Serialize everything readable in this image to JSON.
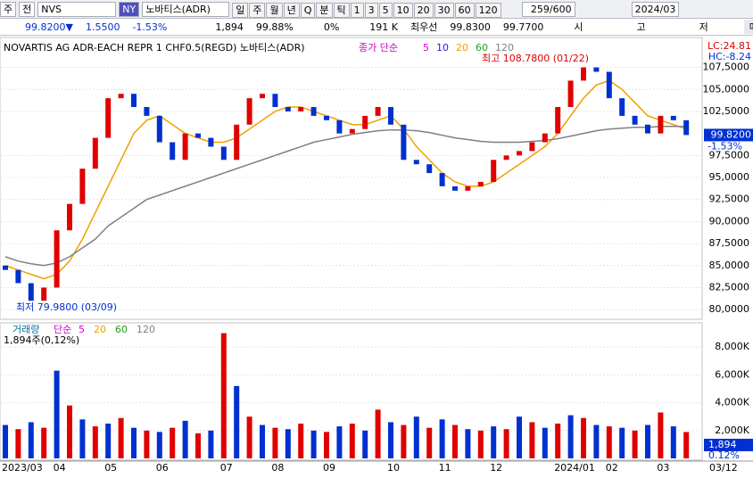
{
  "toolbar": {
    "market": "주",
    "mode": "전",
    "symbol": "NVS",
    "exchange": "NY",
    "name": "노바티스(ADR)",
    "periods": [
      "일",
      "주",
      "월",
      "년",
      "Q",
      "분",
      "틱",
      "1",
      "3",
      "5",
      "10",
      "20",
      "30",
      "60",
      "120"
    ],
    "count": "259/600",
    "date": "2024/03"
  },
  "info": {
    "price": "99.8200▼",
    "change": "1.5500",
    "rate": "-1.53%",
    "volume": "1,894",
    "ratio": "99.88%",
    "zero": "0%",
    "amount": "191 K",
    "best_label": "최우선",
    "ask": "99.8300",
    "bid": "99.7700",
    "open_label": "시",
    "high_label": "고",
    "low_label": "저",
    "buy": "매수"
  },
  "chart_data": [
    {
      "type": "candlestick",
      "title": "NOVARTIS AG ADR-EACH REPR 1 CHF0.5(REGD)  노바티스(ADR)",
      "legend_title": "종가 단순",
      "lc": "LC:24.81",
      "hc": "HC:-8.24",
      "high_note": "최고 108.7800 (01/22)",
      "low_note": "최저 79.9800 (03/09)",
      "last_label": "99.8200",
      "last_rate": "-1.53%",
      "last_value": 99.82,
      "categories": [
        "2023/03",
        null,
        null,
        null,
        "04",
        null,
        null,
        null,
        "05",
        null,
        null,
        null,
        "06",
        null,
        null,
        null,
        null,
        "07",
        null,
        null,
        null,
        "08",
        null,
        null,
        null,
        "09",
        null,
        null,
        null,
        null,
        "10",
        null,
        null,
        null,
        "11",
        null,
        null,
        null,
        "12",
        null,
        null,
        null,
        null,
        "2024/01",
        null,
        null,
        null,
        "02",
        null,
        null,
        null,
        "03",
        null,
        null
      ],
      "last_date": "03/12",
      "open": [
        85,
        84.5,
        83,
        81,
        82.5,
        89,
        92,
        96,
        99.5,
        104,
        104.5,
        103,
        102,
        99,
        97,
        100,
        99.5,
        98.5,
        97,
        101,
        104,
        104.5,
        103,
        102.5,
        103,
        102,
        101.5,
        100,
        100.5,
        102,
        103,
        101,
        97,
        96.5,
        95.5,
        94,
        93.5,
        94,
        94.5,
        97,
        97.5,
        98,
        99,
        100,
        103,
        106,
        107.5,
        107,
        104,
        102,
        101,
        100,
        102,
        101.5
      ],
      "close": [
        84.5,
        83,
        81,
        82.5,
        89,
        92,
        96,
        99.5,
        104,
        104.5,
        103,
        102,
        99,
        97,
        100,
        99.5,
        98.5,
        97,
        101,
        104,
        104.5,
        103,
        102.5,
        103,
        102,
        101.5,
        100,
        100.5,
        102,
        103,
        101,
        97,
        96.5,
        95.5,
        94,
        93.5,
        94,
        94.5,
        97,
        97.5,
        98,
        99,
        100,
        103,
        106,
        107.5,
        107,
        104,
        102,
        101,
        100,
        102,
        101.5,
        99.82
      ],
      "series": [
        {
          "name": "5",
          "color": "#d000d0",
          "values": null
        },
        {
          "name": "10",
          "color": "#2020e0",
          "values": null
        },
        {
          "name": "20",
          "color": "#f0a000",
          "values": [
            85,
            84.5,
            84,
            83.5,
            84,
            85.5,
            88,
            91,
            94,
            97,
            100,
            101.5,
            102,
            101,
            100,
            99.5,
            99,
            99,
            99.5,
            100.5,
            101.5,
            102.5,
            103,
            103,
            102.5,
            102,
            101.5,
            101,
            101,
            101.5,
            102,
            100.5,
            98.5,
            97,
            95.5,
            94.5,
            94,
            94,
            94.5,
            95.5,
            96.5,
            97.5,
            98.5,
            100,
            102,
            104,
            105.5,
            106,
            105,
            103.5,
            102,
            101.5,
            101,
            100.5
          ]
        },
        {
          "name": "60",
          "color": "#20a020",
          "values": null
        },
        {
          "name": "120",
          "color": "#808080",
          "values": [
            86,
            85.5,
            85.2,
            85,
            85.3,
            86,
            87,
            88,
            89.5,
            90.5,
            91.5,
            92.5,
            93,
            93.5,
            94,
            94.5,
            95,
            95.5,
            96,
            96.5,
            97,
            97.5,
            98,
            98.5,
            99,
            99.3,
            99.6,
            99.9,
            100.1,
            100.3,
            100.4,
            100.4,
            100.3,
            100.1,
            99.8,
            99.5,
            99.3,
            99.1,
            99,
            99,
            99,
            99.1,
            99.2,
            99.4,
            99.7,
            100,
            100.3,
            100.5,
            100.6,
            100.7,
            100.7,
            100.8,
            100.8,
            100.8
          ]
        }
      ],
      "ylim": [
        78.9,
        110.9
      ],
      "yticks": [
        {
          "value": 80,
          "label": "80,0000"
        },
        {
          "value": 82.5,
          "label": "82,5000"
        },
        {
          "value": 85,
          "label": "85,0000"
        },
        {
          "value": 87.5,
          "label": "87,5000"
        },
        {
          "value": 90,
          "label": "90,0000"
        },
        {
          "value": 92.5,
          "label": "92,5000"
        },
        {
          "value": 95,
          "label": "95,0000"
        },
        {
          "value": 97.5,
          "label": "97,5000"
        },
        {
          "value": 102.5,
          "label": "102,5000"
        },
        {
          "value": 105,
          "label": "105,0000"
        },
        {
          "value": 107.5,
          "label": "107,5000"
        }
      ],
      "up_color": "#e00000",
      "down_color": "#0030d0",
      "grid": true
    },
    {
      "type": "volume",
      "title": "거래량",
      "legend_title": "단순",
      "ma_names": [
        "5",
        "20",
        "60",
        "120"
      ],
      "ma_colors": [
        "#d000d0",
        "#f0a000",
        "#20a020",
        "#808080"
      ],
      "note": "1,894주(0,12%)",
      "last_label": "1,894",
      "last_rate": "0.12%",
      "values": [
        2400,
        2100,
        2600,
        2200,
        6300,
        3800,
        2800,
        2300,
        2500,
        2900,
        2200,
        2000,
        1900,
        2200,
        2700,
        1800,
        2000,
        9000,
        5200,
        3000,
        2400,
        2200,
        2100,
        2500,
        2000,
        1900,
        2300,
        2500,
        2000,
        3500,
        2600,
        2400,
        3000,
        2200,
        2800,
        2400,
        2100,
        2000,
        2300,
        2100,
        3000,
        2600,
        2200,
        2500,
        3100,
        2900,
        2400,
        2300,
        2200,
        2000,
        2400,
        3300,
        2300,
        1894
      ],
      "ylim": [
        0,
        9740
      ],
      "yticks": [
        {
          "value": 2000,
          "label": "2,000K"
        },
        {
          "value": 4000,
          "label": "4,000K"
        },
        {
          "value": 6000,
          "label": "6,000K"
        },
        {
          "value": 8000,
          "label": "8,000K"
        }
      ],
      "grid": true
    }
  ]
}
